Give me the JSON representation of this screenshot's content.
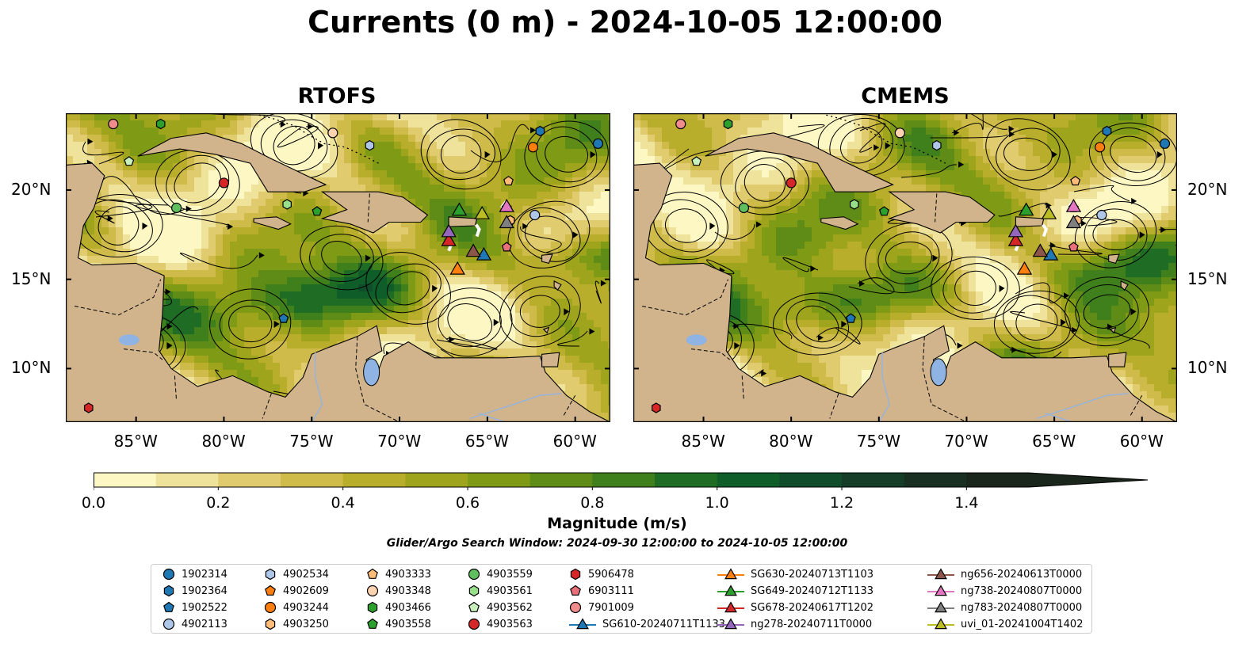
{
  "title": "Currents (0 m) - 2024-10-05 12:00:00",
  "panels": [
    {
      "title": "RTOFS"
    },
    {
      "title": "CMEMS"
    }
  ],
  "axes": {
    "lon_labels": [
      "85°W",
      "80°W",
      "75°W",
      "70°W",
      "65°W",
      "60°W"
    ],
    "lon_values": [
      -85,
      -80,
      -75,
      -70,
      -65,
      -60
    ],
    "lat_labels": [
      "20°N",
      "15°N",
      "10°N"
    ],
    "lat_values": [
      20,
      15,
      10
    ],
    "lon_range": [
      -89,
      -58
    ],
    "lat_range": [
      7,
      24.3
    ]
  },
  "colorbar": {
    "label": "Magnitude (m/s)",
    "tick_labels": [
      "0.0",
      "0.2",
      "0.4",
      "0.6",
      "0.8",
      "1.0",
      "1.2",
      "1.4"
    ],
    "tick_values": [
      0.0,
      0.2,
      0.4,
      0.6,
      0.8,
      1.0,
      1.2,
      1.4
    ],
    "range": [
      0.0,
      1.5
    ],
    "extend": "max",
    "colors": [
      "#fdf7c4",
      "#efe29a",
      "#e0cc6e",
      "#cfbb4a",
      "#b9ad2c",
      "#9ea41c",
      "#7f9a14",
      "#5f8c16",
      "#3f7f1c",
      "#1f6d24",
      "#0f5e2a",
      "#104d2a",
      "#153d27",
      "#182f21",
      "#1a251b"
    ]
  },
  "search_window": "Glider/Argo Search Window: 2024-09-30 12:00:00 to 2024-10-05 12:00:00",
  "land_color": "#d2b48c",
  "lake_color": "#8fb3e3",
  "legend": {
    "items": [
      {
        "label": "1902314",
        "marker": "circle",
        "color": "#1f77b4"
      },
      {
        "label": "1902364",
        "marker": "hexagon",
        "color": "#1f77b4"
      },
      {
        "label": "1902522",
        "marker": "pentagon",
        "color": "#1f77b4"
      },
      {
        "label": "4902113",
        "marker": "circle",
        "color": "#aec7e8"
      },
      {
        "label": "4902534",
        "marker": "hexagon",
        "color": "#aec7e8"
      },
      {
        "label": "4902609",
        "marker": "pentagon",
        "color": "#ff7f0e"
      },
      {
        "label": "4903244",
        "marker": "circle",
        "color": "#ff7f0e"
      },
      {
        "label": "4903250",
        "marker": "hexagon",
        "color": "#ffbb78"
      },
      {
        "label": "4903333",
        "marker": "pentagon",
        "color": "#ffbb78"
      },
      {
        "label": "4903348",
        "marker": "circle",
        "color": "#ffd2b0"
      },
      {
        "label": "4903466",
        "marker": "hexagon",
        "color": "#2ca02c"
      },
      {
        "label": "4903558",
        "marker": "pentagon",
        "color": "#2ca02c"
      },
      {
        "label": "4903559",
        "marker": "circle",
        "color": "#5fbf5f"
      },
      {
        "label": "4903561",
        "marker": "hexagon",
        "color": "#98df8a"
      },
      {
        "label": "4903562",
        "marker": "pentagon",
        "color": "#c8f0bc"
      },
      {
        "label": "4903563",
        "marker": "circle",
        "color": "#d62728"
      },
      {
        "label": "5906478",
        "marker": "hexagon",
        "color": "#d62728"
      },
      {
        "label": "6903111",
        "marker": "pentagon",
        "color": "#e8707a"
      },
      {
        "label": "7901009",
        "marker": "circle",
        "color": "#f08c8c"
      },
      {
        "label": "SG610-20240711T1133",
        "marker": "triangle-line",
        "color": "#1f77b4"
      },
      {
        "label": "SG630-20240713T1103",
        "marker": "triangle-line",
        "color": "#ff7f0e"
      },
      {
        "label": "SG649-20240712T1133",
        "marker": "triangle-line",
        "color": "#2ca02c"
      },
      {
        "label": "SG678-20240617T1202",
        "marker": "triangle-line",
        "color": "#d62728"
      },
      {
        "label": "ng278-20240711T0000",
        "marker": "triangle-line",
        "color": "#9467bd"
      },
      {
        "label": "ng656-20240613T0000",
        "marker": "triangle-line",
        "color": "#8c564b"
      },
      {
        "label": "ng738-20240807T0000",
        "marker": "triangle-line",
        "color": "#e377c2"
      },
      {
        "label": "ng783-20240807T0000",
        "marker": "triangle-line",
        "color": "#7f7f7f"
      },
      {
        "label": "uvi_01-20241004T1402",
        "marker": "triangle-line",
        "color": "#bcbd22"
      }
    ]
  },
  "argo_positions": [
    {
      "id": "1902314",
      "lon": -58.7,
      "lat": 22.6
    },
    {
      "id": "1902364",
      "lon": -62.0,
      "lat": 23.3
    },
    {
      "id": "1902522",
      "lon": -76.6,
      "lat": 12.8
    },
    {
      "id": "4902113",
      "lon": -62.3,
      "lat": 18.6
    },
    {
      "id": "4902534",
      "lon": -71.7,
      "lat": 22.5
    },
    {
      "id": "4902609",
      "lon": -63.9,
      "lat": 19.0
    },
    {
      "id": "4903244",
      "lon": -62.4,
      "lat": 22.4
    },
    {
      "id": "4903250",
      "lon": -63.7,
      "lat": 18.3
    },
    {
      "id": "4903333",
      "lon": -63.8,
      "lat": 20.5
    },
    {
      "id": "4903348",
      "lon": -73.8,
      "lat": 23.2
    },
    {
      "id": "4903466",
      "lon": -83.6,
      "lat": 23.7
    },
    {
      "id": "4903558",
      "lon": -74.7,
      "lat": 18.8
    },
    {
      "id": "4903559",
      "lon": -82.7,
      "lat": 19.0
    },
    {
      "id": "4903561",
      "lon": -76.4,
      "lat": 19.2
    },
    {
      "id": "4903562",
      "lon": -85.4,
      "lat": 21.6
    },
    {
      "id": "4903563",
      "lon": -80.0,
      "lat": 20.4
    },
    {
      "id": "5906478",
      "lon": -87.7,
      "lat": 7.8
    },
    {
      "id": "6903111",
      "lon": -63.9,
      "lat": 16.8
    },
    {
      "id": "7901009",
      "lon": -86.3,
      "lat": 23.7
    }
  ],
  "glider_positions": [
    {
      "id": "SG610-20240711T1133",
      "lon": -65.2,
      "lat": 16.4
    },
    {
      "id": "SG630-20240713T1103",
      "lon": -66.7,
      "lat": 15.6
    },
    {
      "id": "SG649-20240712T1133",
      "lon": -66.6,
      "lat": 18.9
    },
    {
      "id": "SG678-20240617T1202",
      "lon": -67.2,
      "lat": 17.2
    },
    {
      "id": "ng278-20240711T0000",
      "lon": -67.2,
      "lat": 17.7
    },
    {
      "id": "ng656-20240613T0000",
      "lon": -65.8,
      "lat": 16.6
    },
    {
      "id": "ng738-20240807T0000",
      "lon": -63.9,
      "lat": 19.1
    },
    {
      "id": "ng783-20240807T0000",
      "lon": -63.9,
      "lat": 18.2
    },
    {
      "id": "uvi_01-20241004T1402",
      "lon": -65.3,
      "lat": 18.7
    }
  ]
}
